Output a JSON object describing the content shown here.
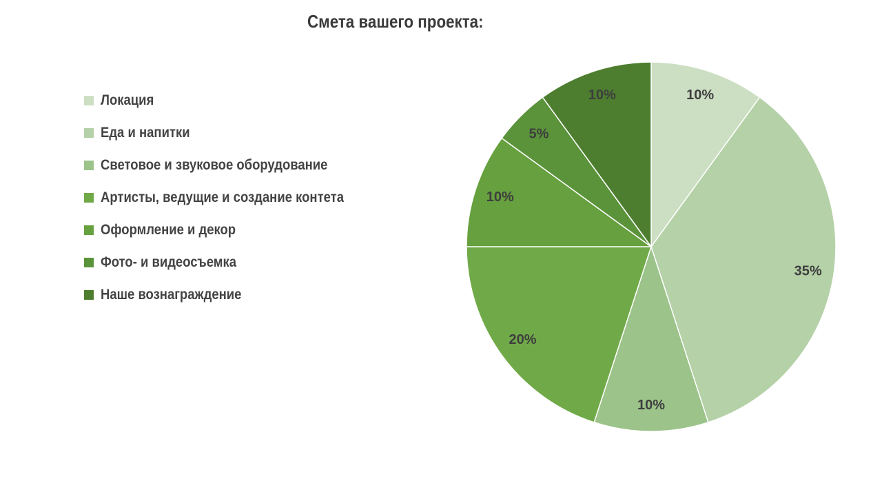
{
  "chart_data": {
    "type": "pie",
    "title": "Смета вашего проекта:",
    "start_angle_deg": 0,
    "direction": "clockwise",
    "legend_position": "left",
    "slices": [
      {
        "label": "Локация",
        "value": 10,
        "value_label": "10%",
        "color": "#cddfc3"
      },
      {
        "label": "Еда и напитки",
        "value": 35,
        "value_label": "35%",
        "color": "#b5d1a7"
      },
      {
        "label": "Световое и звуковое оборудование",
        "value": 10,
        "value_label": "10%",
        "color": "#9cc389"
      },
      {
        "label": "Артисты, ведущие и создание контета",
        "value": 20,
        "value_label": "20%",
        "color": "#70aa48"
      },
      {
        "label": "Оформление и декор",
        "value": 10,
        "value_label": "10%",
        "color": "#66a03f"
      },
      {
        "label": "Фото- и видеосъемка",
        "value": 5,
        "value_label": "5%",
        "color": "#5a933a"
      },
      {
        "label": "Наше вознаграждение",
        "value": 10,
        "value_label": "10%",
        "color": "#4d7e2f"
      }
    ]
  }
}
